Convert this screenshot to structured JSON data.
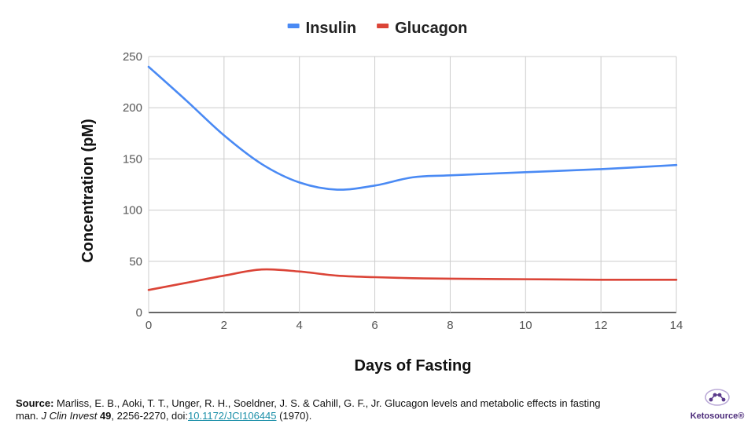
{
  "chart_data": {
    "type": "line",
    "title": "",
    "xlabel": "Days of Fasting",
    "ylabel": "Concentration (pM)",
    "xlim": [
      0,
      14
    ],
    "ylim": [
      0,
      250
    ],
    "x_ticks": [
      0,
      2,
      4,
      6,
      8,
      10,
      12,
      14
    ],
    "y_ticks": [
      0,
      50,
      100,
      150,
      200,
      250
    ],
    "grid": true,
    "legend_position": "top-center",
    "series": [
      {
        "name": "Insulin",
        "color": "#4a8af4",
        "x": [
          0,
          1,
          2,
          3,
          4,
          5,
          6,
          7,
          8,
          10,
          12,
          14
        ],
        "y": [
          240,
          207,
          173,
          145,
          127,
          120,
          124,
          132,
          134,
          137,
          140,
          144
        ]
      },
      {
        "name": "Glucagon",
        "color": "#db4437",
        "x": [
          0,
          1,
          2,
          3,
          4,
          5,
          6,
          7,
          8,
          10,
          12,
          14
        ],
        "y": [
          22,
          29,
          36,
          42,
          40,
          36,
          34.5,
          33.5,
          33,
          32.5,
          32,
          32
        ]
      }
    ]
  },
  "source": {
    "label": "Source:",
    "text_1": " Marliss, E. B., Aoki, T. T., Unger, R. H., Soeldner, J. S. & Cahill, G. F., Jr. Glucagon levels and metabolic effects in fasting man. ",
    "journal": "J Clin Invest",
    "space": " ",
    "volume": "49",
    "pages": ", 2256-2270, doi:",
    "doi": "10.1172/JCI106445",
    "year": " (1970)."
  },
  "logo": {
    "name": "Ketosource®",
    "color": "#5b3a8c"
  }
}
